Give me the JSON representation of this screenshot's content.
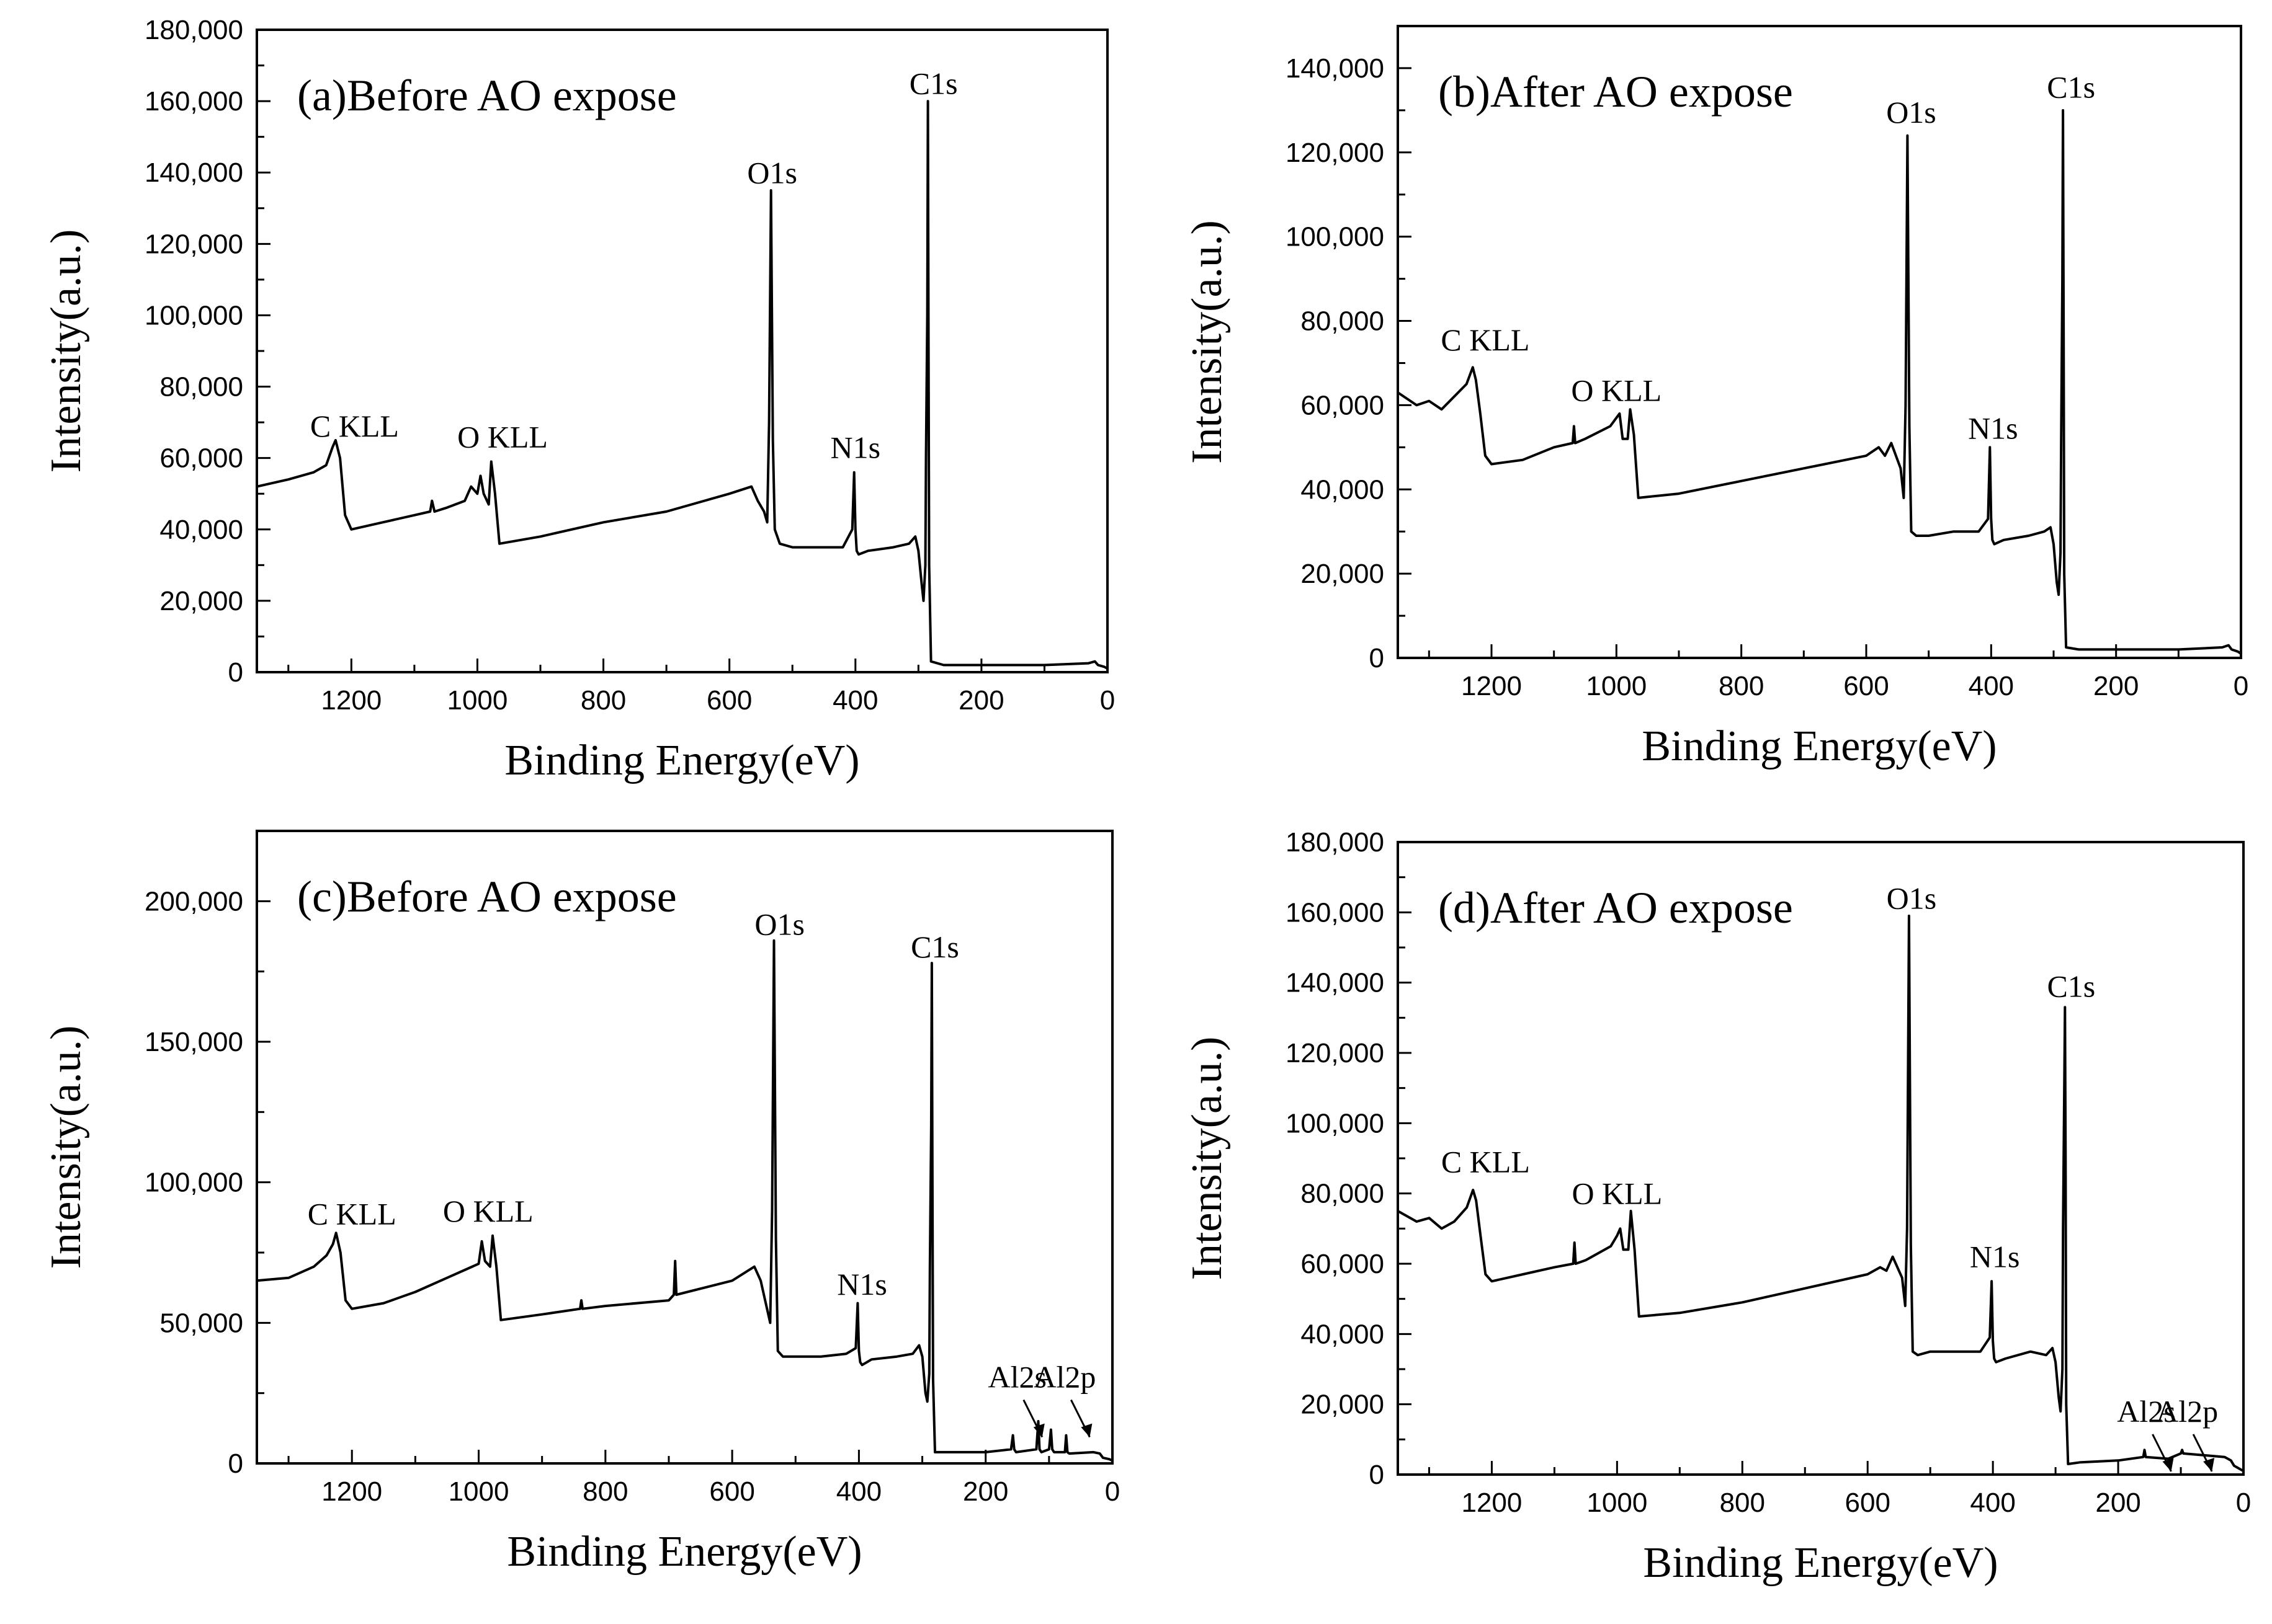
{
  "chart_data": [
    {
      "type": "line",
      "title": "(a)Before AO expose",
      "xlabel": "Binding Energy(eV)",
      "ylabel": "Intensity(a.u.)",
      "xlim": [
        1350,
        0
      ],
      "ylim": [
        0,
        180000
      ],
      "x_ticks": [
        1200,
        1000,
        800,
        600,
        400,
        200,
        0
      ],
      "y_ticks": [
        0,
        20000,
        40000,
        60000,
        80000,
        100000,
        120000,
        140000,
        160000,
        180000
      ],
      "x_tick_labels": [
        "1200",
        "1000",
        "800",
        "600",
        "400",
        "200",
        "0"
      ],
      "y_tick_labels": [
        "0",
        "20,000",
        "40,000",
        "60,000",
        "80,000",
        "100,000",
        "120,000",
        "140,000",
        "160,000",
        "180,000"
      ],
      "series": [
        {
          "name": "spectrum",
          "x": [
            1350,
            1300,
            1260,
            1240,
            1230,
            1225,
            1218,
            1210,
            1200,
            1150,
            1100,
            1075,
            1072,
            1068,
            1050,
            1020,
            1010,
            1000,
            995,
            990,
            982,
            978,
            972,
            965,
            900,
            800,
            700,
            600,
            565,
            555,
            545,
            540,
            537,
            534,
            531,
            528,
            520,
            500,
            460,
            420,
            405,
            402,
            400,
            398,
            395,
            380,
            340,
            315,
            305,
            300,
            295,
            292,
            289,
            288,
            286,
            285,
            284,
            283,
            280,
            260,
            200,
            100,
            30,
            20,
            15,
            5,
            0
          ],
          "y": [
            52000,
            54000,
            56000,
            58000,
            63000,
            65000,
            60000,
            44000,
            40000,
            42000,
            44000,
            45000,
            48000,
            45000,
            46000,
            48000,
            52000,
            50000,
            55000,
            50000,
            47000,
            59000,
            50000,
            36000,
            38000,
            42000,
            45000,
            50000,
            52000,
            48000,
            45000,
            42000,
            70000,
            135000,
            65000,
            40000,
            36000,
            35000,
            35000,
            35000,
            40000,
            56000,
            40000,
            34000,
            33000,
            34000,
            35000,
            36000,
            38000,
            34000,
            25000,
            20000,
            30000,
            60000,
            100000,
            160000,
            90000,
            30000,
            3000,
            2000,
            2000,
            2000,
            2500,
            3000,
            2000,
            1500,
            1000
          ]
        }
      ],
      "annotations": [
        {
          "text": "C KLL",
          "x": 1195,
          "y": 66000,
          "anchor": "middle"
        },
        {
          "text": "O KLL",
          "x": 960,
          "y": 63000,
          "anchor": "middle"
        },
        {
          "text": "O1s",
          "x": 532,
          "y": 137000,
          "anchor": "middle"
        },
        {
          "text": "N1s",
          "x": 400,
          "y": 60000,
          "anchor": "middle"
        },
        {
          "text": "C1s",
          "x": 276,
          "y": 162000,
          "anchor": "middle"
        }
      ]
    },
    {
      "type": "line",
      "title": "(b)After AO expose",
      "xlabel": "Binding Energy(eV)",
      "ylabel": "Intensity(a.u.)",
      "xlim": [
        1350,
        0
      ],
      "ylim": [
        0,
        150000
      ],
      "x_ticks": [
        1200,
        1000,
        800,
        600,
        400,
        200,
        0
      ],
      "y_ticks": [
        0,
        20000,
        40000,
        60000,
        80000,
        100000,
        120000,
        140000
      ],
      "x_tick_labels": [
        "1200",
        "1000",
        "800",
        "600",
        "400",
        "200",
        "0"
      ],
      "y_tick_labels": [
        "0",
        "20,000",
        "40,000",
        "60,000",
        "80,000",
        "100,000",
        "120,000",
        "140,000"
      ],
      "series": [
        {
          "name": "spectrum",
          "x": [
            1350,
            1320,
            1300,
            1280,
            1260,
            1240,
            1230,
            1225,
            1218,
            1210,
            1200,
            1150,
            1100,
            1070,
            1068,
            1066,
            1050,
            1010,
            1000,
            995,
            990,
            982,
            978,
            972,
            965,
            900,
            800,
            700,
            600,
            580,
            570,
            560,
            545,
            540,
            537,
            534,
            531,
            528,
            520,
            500,
            460,
            420,
            405,
            402,
            400,
            398,
            395,
            380,
            340,
            315,
            305,
            300,
            295,
            292,
            289,
            288,
            286,
            285,
            284,
            283,
            280,
            260,
            200,
            100,
            30,
            20,
            15,
            5,
            0
          ],
          "y": [
            63000,
            60000,
            61000,
            59000,
            62000,
            65000,
            69000,
            66000,
            58000,
            48000,
            46000,
            47000,
            50000,
            51000,
            55000,
            51000,
            52000,
            55000,
            57000,
            58000,
            52000,
            52000,
            59000,
            53000,
            38000,
            39000,
            42000,
            45000,
            48000,
            50000,
            48000,
            51000,
            45000,
            38000,
            60000,
            124000,
            55000,
            30000,
            29000,
            29000,
            30000,
            30000,
            33000,
            50000,
            33000,
            28000,
            27000,
            28000,
            29000,
            30000,
            31000,
            27000,
            18000,
            15000,
            25000,
            50000,
            90000,
            130000,
            80000,
            20000,
            2500,
            2000,
            2000,
            2000,
            2500,
            3000,
            2000,
            1500,
            1000
          ]
        }
      ],
      "annotations": [
        {
          "text": "C KLL",
          "x": 1210,
          "y": 73000,
          "anchor": "middle"
        },
        {
          "text": "O KLL",
          "x": 1000,
          "y": 61000,
          "anchor": "middle"
        },
        {
          "text": "O1s",
          "x": 528,
          "y": 127000,
          "anchor": "middle"
        },
        {
          "text": "N1s",
          "x": 397,
          "y": 52000,
          "anchor": "middle"
        },
        {
          "text": "C1s",
          "x": 272,
          "y": 133000,
          "anchor": "middle"
        }
      ]
    },
    {
      "type": "line",
      "title": "(c)Before AO expose",
      "xlabel": "Binding Energy(eV)",
      "ylabel": "Intensity(a.u.)",
      "xlim": [
        1350,
        0
      ],
      "ylim": [
        0,
        225000
      ],
      "x_ticks": [
        1200,
        1000,
        800,
        600,
        400,
        200,
        0
      ],
      "y_ticks": [
        0,
        50000,
        100000,
        150000,
        200000
      ],
      "x_tick_labels": [
        "1200",
        "1000",
        "800",
        "600",
        "400",
        "200",
        "0"
      ],
      "y_tick_labels": [
        "0",
        "50,000",
        "100,000",
        "150,000",
        "200,000"
      ],
      "series": [
        {
          "name": "spectrum",
          "x": [
            1350,
            1300,
            1260,
            1240,
            1230,
            1225,
            1218,
            1210,
            1200,
            1150,
            1100,
            1050,
            1000,
            995,
            990,
            982,
            978,
            972,
            965,
            900,
            840,
            838,
            836,
            800,
            700,
            692,
            690,
            688,
            600,
            565,
            555,
            545,
            540,
            537,
            534,
            531,
            528,
            520,
            500,
            460,
            420,
            405,
            402,
            400,
            398,
            395,
            380,
            340,
            315,
            305,
            300,
            295,
            292,
            289,
            288,
            286,
            285,
            284,
            283,
            280,
            260,
            200,
            160,
            157,
            155,
            152,
            120,
            117,
            115,
            112,
            100,
            97,
            95,
            92,
            75,
            73,
            71,
            68,
            30,
            20,
            15,
            5,
            0
          ],
          "y": [
            65000,
            66000,
            70000,
            74000,
            78000,
            82000,
            75000,
            58000,
            55000,
            57000,
            61000,
            66000,
            71000,
            79000,
            72000,
            70000,
            81000,
            70000,
            51000,
            53000,
            55000,
            58000,
            55000,
            56000,
            58000,
            60000,
            72000,
            60000,
            65000,
            70000,
            65000,
            55000,
            50000,
            90000,
            186000,
            80000,
            40000,
            38000,
            38000,
            38000,
            39000,
            41000,
            57000,
            40000,
            36000,
            35000,
            37000,
            38000,
            39000,
            42000,
            38000,
            25000,
            22000,
            32000,
            70000,
            120000,
            178000,
            100000,
            30000,
            4000,
            4000,
            4000,
            5000,
            10000,
            5000,
            4000,
            5000,
            15000,
            5000,
            4000,
            5000,
            12000,
            5000,
            4000,
            4000,
            10000,
            4000,
            3500,
            4000,
            3500,
            2000,
            1500,
            1000
          ]
        }
      ],
      "annotations": [
        {
          "text": "C KLL",
          "x": 1200,
          "y": 85000,
          "anchor": "middle"
        },
        {
          "text": "O KLL",
          "x": 985,
          "y": 86000,
          "anchor": "middle"
        },
        {
          "text": "O1s",
          "x": 525,
          "y": 188000,
          "anchor": "middle"
        },
        {
          "text": "N1s",
          "x": 395,
          "y": 60000,
          "anchor": "middle"
        },
        {
          "text": "C1s",
          "x": 280,
          "y": 180000,
          "anchor": "middle"
        },
        {
          "text": "Al2s",
          "x": 150,
          "y": 27000,
          "anchor": "middle"
        },
        {
          "text": "Al2p",
          "x": 75,
          "y": 27000,
          "anchor": "middle"
        }
      ]
    },
    {
      "type": "line",
      "title": "(d)After AO expose",
      "xlabel": "Binding Energy(eV)",
      "ylabel": "Intensity(a.u.)",
      "xlim": [
        1350,
        0
      ],
      "ylim": [
        0,
        180000
      ],
      "x_ticks": [
        1200,
        1000,
        800,
        600,
        400,
        200,
        0
      ],
      "y_ticks": [
        0,
        20000,
        40000,
        60000,
        80000,
        100000,
        120000,
        140000,
        160000,
        180000
      ],
      "x_tick_labels": [
        "1200",
        "1000",
        "800",
        "600",
        "400",
        "200",
        "0"
      ],
      "y_tick_labels": [
        "0",
        "20,000",
        "40,000",
        "60,000",
        "80,000",
        "100,000",
        "120,000",
        "140,000",
        "160,000",
        "180,000"
      ],
      "series": [
        {
          "name": "spectrum",
          "x": [
            1350,
            1320,
            1300,
            1280,
            1260,
            1240,
            1230,
            1225,
            1218,
            1210,
            1200,
            1150,
            1100,
            1070,
            1068,
            1066,
            1050,
            1010,
            1000,
            995,
            990,
            982,
            978,
            972,
            965,
            900,
            800,
            700,
            600,
            580,
            570,
            560,
            545,
            540,
            537,
            534,
            531,
            528,
            520,
            500,
            460,
            420,
            405,
            402,
            400,
            398,
            395,
            380,
            340,
            315,
            305,
            300,
            295,
            292,
            289,
            288,
            286,
            285,
            284,
            283,
            280,
            260,
            200,
            160,
            158,
            156,
            120,
            100,
            98,
            96,
            30,
            20,
            15,
            5,
            0
          ],
          "y": [
            75000,
            72000,
            73000,
            70000,
            72000,
            76000,
            81000,
            78000,
            68000,
            57000,
            55000,
            57000,
            59000,
            60000,
            66000,
            60000,
            61000,
            65000,
            68000,
            70000,
            64000,
            64000,
            75000,
            64000,
            45000,
            46000,
            49000,
            53000,
            57000,
            59000,
            58000,
            62000,
            56000,
            48000,
            70000,
            159000,
            65000,
            35000,
            34000,
            35000,
            35000,
            35000,
            39000,
            55000,
            38000,
            33000,
            32000,
            33000,
            35000,
            34000,
            36000,
            32000,
            22000,
            18000,
            30000,
            70000,
            110000,
            133000,
            90000,
            20000,
            3000,
            3500,
            4000,
            5000,
            7000,
            5000,
            4500,
            6000,
            7000,
            6000,
            5000,
            4000,
            2500,
            1500,
            1000
          ]
        }
      ],
      "annotations": [
        {
          "text": "C KLL",
          "x": 1210,
          "y": 86000,
          "anchor": "middle"
        },
        {
          "text": "O KLL",
          "x": 1000,
          "y": 77000,
          "anchor": "middle"
        },
        {
          "text": "O1s",
          "x": 530,
          "y": 161000,
          "anchor": "middle"
        },
        {
          "text": "N1s",
          "x": 397,
          "y": 59000,
          "anchor": "middle"
        },
        {
          "text": "C1s",
          "x": 275,
          "y": 136000,
          "anchor": "middle"
        },
        {
          "text": "Al2s",
          "x": 155,
          "y": 15000,
          "anchor": "middle"
        },
        {
          "text": "Al2p",
          "x": 90,
          "y": 15000,
          "anchor": "middle"
        }
      ]
    }
  ],
  "colors": {
    "line": "#000000",
    "background": "#ffffff"
  }
}
